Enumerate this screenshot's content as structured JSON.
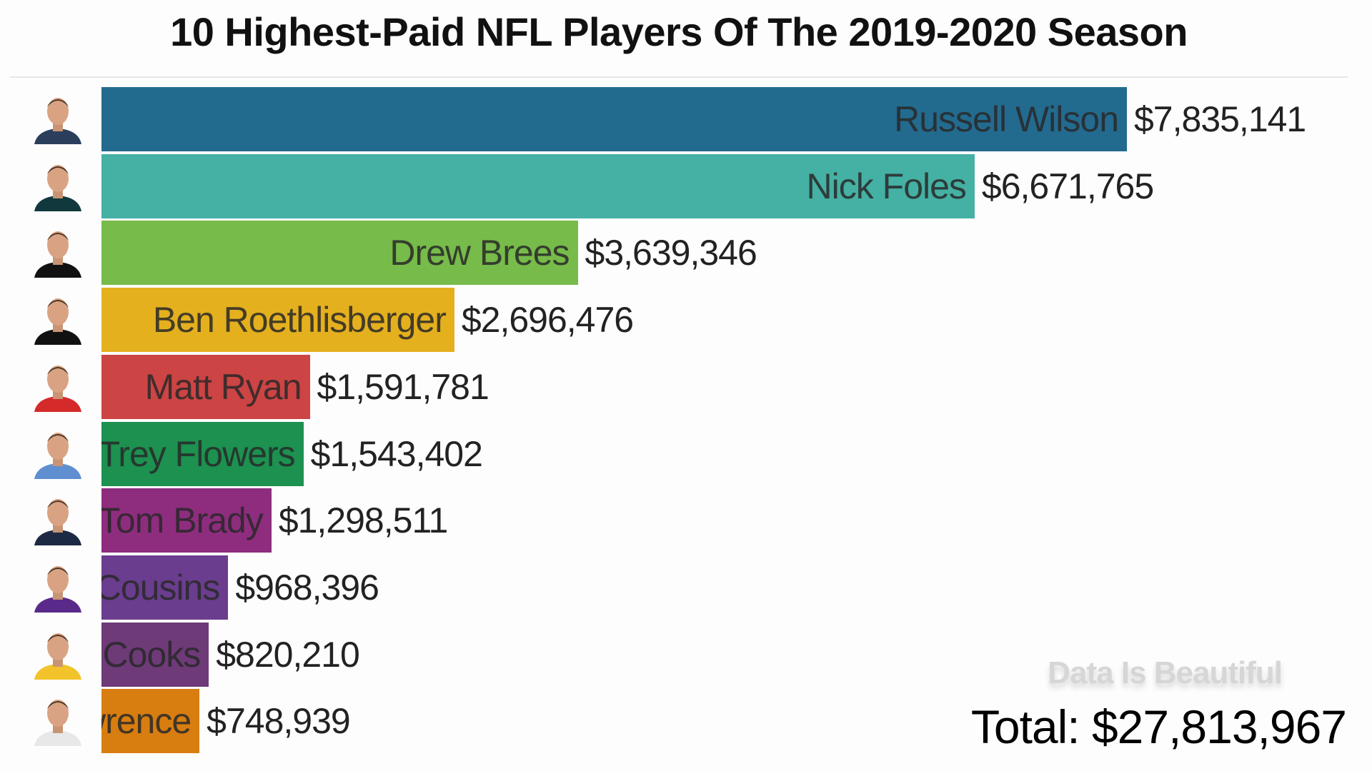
{
  "chart_data": {
    "type": "bar",
    "orientation": "horizontal",
    "title": "10 Highest-Paid NFL Players Of The 2019-2020 Season",
    "categories": [
      "Russell Wilson",
      "Nick Foles",
      "Drew Brees",
      "Ben Roethlisberger",
      "Matt Ryan",
      "Trey Flowers",
      "Tom Brady",
      "Kirk Cousins",
      "Brandin Cooks",
      "Demarcus Lawrence"
    ],
    "values": [
      7835141,
      6671765,
      3639346,
      2696476,
      1591781,
      1543402,
      1298511,
      968396,
      820210,
      748939
    ],
    "value_labels": [
      "$7,835,141",
      "$6,671,765",
      "$3,639,346",
      "$2,696,476",
      "$1,591,781",
      "$1,543,402",
      "$1,298,511",
      "$968,396",
      "$820,210",
      "$748,939"
    ],
    "colors": [
      "#236a8f",
      "#45b0a4",
      "#77bb4a",
      "#e4b01e",
      "#cc4444",
      "#1c9150",
      "#8e2d7e",
      "#6a3d8e",
      "#6e3a78",
      "#d87d10"
    ],
    "jersey_colors": [
      "#2b3f5c",
      "#11383d",
      "#111111",
      "#111111",
      "#d42a2a",
      "#5f8fd0",
      "#1d2a44",
      "#5a2a8a",
      "#f2c32a",
      "#e8e8e8"
    ],
    "xlabel": "",
    "ylabel": "",
    "grid": false,
    "legend": "none"
  },
  "watermark": "Data Is Beautiful",
  "total": "Total: $27,813,967"
}
